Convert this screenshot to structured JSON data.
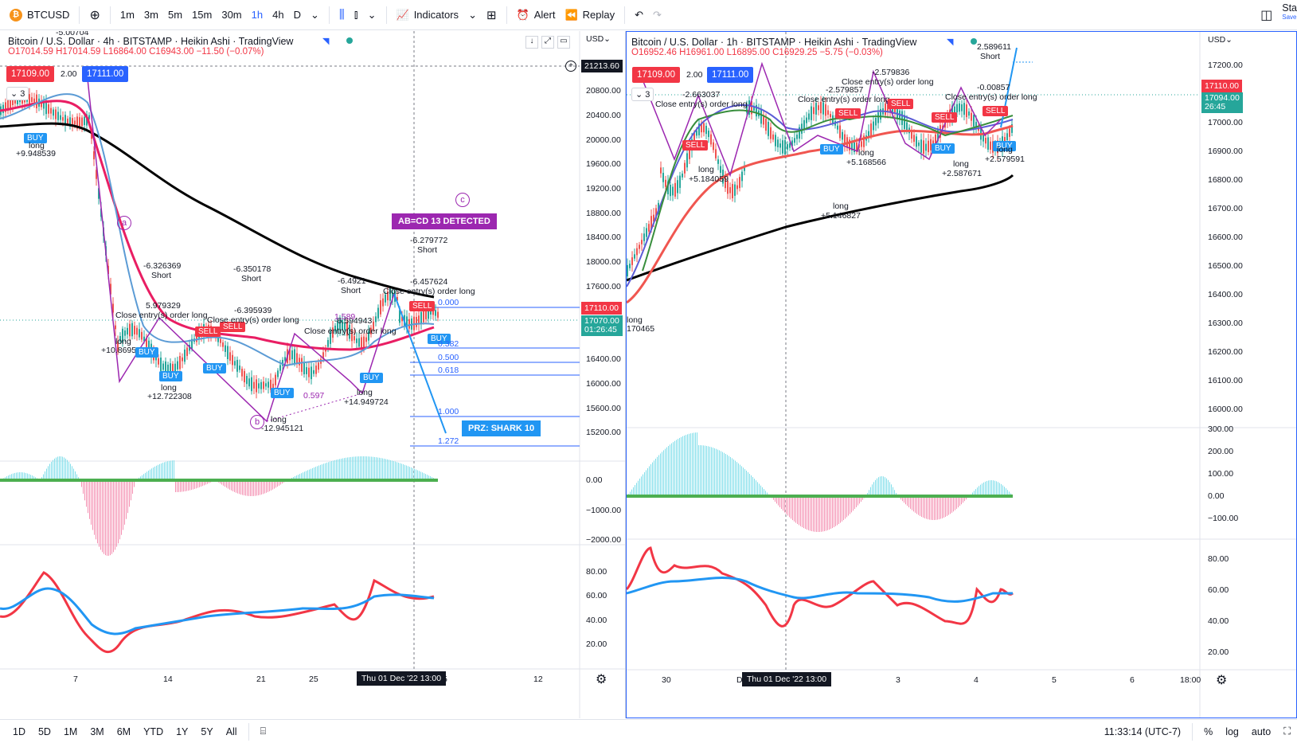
{
  "toolbar": {
    "symbol": "BTCUSD",
    "timeframes": [
      "1m",
      "3m",
      "5m",
      "15m",
      "30m",
      "1h",
      "4h",
      "D"
    ],
    "active_timeframe": "1h",
    "indicators_label": "Indicators",
    "alert_label": "Alert",
    "replay_label": "Replay",
    "save_label": "Sta",
    "save_sub": "Save"
  },
  "left": {
    "title": "Bitcoin / U.S. Dollar · 4h · BITSTAMP · Heikin Ashi · TradingView",
    "ohlc": "O17014.59 H17014.59 L16864.00 C16943.00 −11.50 (−0.07%)",
    "sell_price": "17109.00",
    "spread": "2.00",
    "buy_price": "17111.00",
    "indicator_count": "3",
    "currency": "USD",
    "crosshair_price": "21213.60",
    "price_axis": [
      "20800.00",
      "20400.00",
      "20000.00",
      "19600.00",
      "19200.00",
      "18800.00",
      "18400.00",
      "18000.00",
      "17600.00",
      "16400.00",
      "16000.00",
      "15600.00",
      "15200.00"
    ],
    "current_price": "17110.00",
    "current_price_2": "17070.00",
    "countdown": "01:26:45",
    "osc_axis": [
      "0.00",
      "−1000.00",
      "−2000.00"
    ],
    "rsi_axis": [
      "80.00",
      "60.00",
      "40.00",
      "20.00"
    ],
    "time_axis": [
      "7",
      "14",
      "21",
      "25",
      "5",
      "12"
    ],
    "time_cursor": "Thu 01 Dec '22   13:00",
    "banner": "AB=CD 13 DETECTED",
    "prz": "PRZ: SHARK 10",
    "fib_levels": [
      "0.000",
      "0.382",
      "0.500",
      "0.618",
      "1.000",
      "1.272"
    ],
    "waves": [
      "a",
      "b",
      "c"
    ],
    "annotations": [
      {
        "text": "-5.00704"
      },
      {
        "text": "long"
      },
      {
        "text": "+9.948539"
      },
      {
        "text": "-6.326369"
      },
      {
        "text": "Short"
      },
      {
        "text": "5.979329"
      },
      {
        "text": "Close entry(s) order long"
      },
      {
        "text": "long"
      },
      {
        "text": "+10.869543"
      },
      {
        "text": "long"
      },
      {
        "text": "+12.722308"
      },
      {
        "text": "-6.350178"
      },
      {
        "text": "Short"
      },
      {
        "text": "-6.395939"
      },
      {
        "text": "Close entry(s) order long"
      },
      {
        "text": "-6.4921"
      },
      {
        "text": "Short"
      },
      {
        "text": "-6.594943"
      },
      {
        "text": "Close entry(s) order long"
      },
      {
        "text": "1.589"
      },
      {
        "text": "0.597"
      },
      {
        "text": "long"
      },
      {
        "text": "-12.945121"
      },
      {
        "text": "long"
      },
      {
        "text": "+14.949724"
      },
      {
        "text": "-6.279772"
      },
      {
        "text": "Short"
      },
      {
        "text": "-6.457624"
      },
      {
        "text": "Close entry(s) order long"
      }
    ]
  },
  "right": {
    "title": "Bitcoin / U.S. Dollar · 1h · BITSTAMP · Heikin Ashi · TradingView",
    "ohlc": "O16952.46 H16961.00 L16895.00 C16929.25 −5.75 (−0.03%)",
    "sell_price": "17109.00",
    "spread": "2.00",
    "buy_price": "17111.00",
    "indicator_count": "3",
    "currency": "USD",
    "price_axis": [
      "17200.00",
      "17000.00",
      "16900.00",
      "16800.00",
      "16700.00",
      "16600.00",
      "16500.00",
      "16400.00",
      "16300.00",
      "16200.00",
      "16100.00",
      "16000.00"
    ],
    "current_price": "17110.00",
    "current_price_2": "17094.00",
    "countdown": "26:45",
    "osc_axis": [
      "300.00",
      "200.00",
      "100.00",
      "0.00",
      "−100.00"
    ],
    "rsi_axis": [
      "80.00",
      "60.00",
      "40.00",
      "20.00"
    ],
    "time_axis": [
      "30",
      "D",
      "3",
      "4",
      "5",
      "6",
      "18:00"
    ],
    "time_cursor": "Thu 01 Dec '22   13:00",
    "annotations": [
      {
        "text": "-2.663037"
      },
      {
        "text": "Close entry(s) order long"
      },
      {
        "text": "-2.579857"
      },
      {
        "text": "Close entry(s) order long"
      },
      {
        "text": "-2.579836"
      },
      {
        "text": "Close entry(s) order long"
      },
      {
        "text": "2.589611"
      },
      {
        "text": "Short"
      },
      {
        "text": "-0.00857"
      },
      {
        "text": "Close entry(s) order long"
      },
      {
        "text": "long"
      },
      {
        "text": "+5.184059"
      },
      {
        "text": "long"
      },
      {
        "text": "+5.168566"
      },
      {
        "text": "long"
      },
      {
        "text": "+5.146827"
      },
      {
        "text": "long"
      },
      {
        "text": "+2.587671"
      },
      {
        "text": "long"
      },
      {
        "text": "+2.579591"
      },
      {
        "text": "long"
      },
      {
        "text": "170465"
      }
    ]
  },
  "bottom": {
    "ranges": [
      "1D",
      "5D",
      "1M",
      "3M",
      "6M",
      "YTD",
      "1Y",
      "5Y",
      "All"
    ],
    "clock": "11:33:14 (UTC-7)",
    "percent": "%",
    "log": "log",
    "auto": "auto"
  }
}
